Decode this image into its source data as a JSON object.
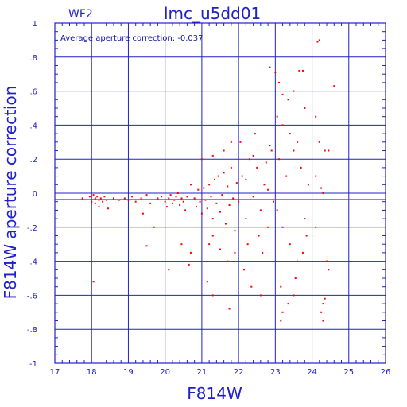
{
  "panel_label": "WF2",
  "title": "lmc_u5dd01",
  "annotation": "Average aperture correction: -0.037",
  "colors": {
    "axes": "#2020c8",
    "points": "#ff0000",
    "mean_line": "#ff0000"
  },
  "chart_data": {
    "type": "scatter",
    "title": "lmc_u5dd01",
    "subtitle": "WF2",
    "xlabel": "F814W",
    "ylabel": "F814W aperture correction",
    "xlim": [
      17,
      26
    ],
    "ylim": [
      -1,
      1
    ],
    "xticks": [
      17,
      18,
      19,
      20,
      21,
      22,
      23,
      24,
      25,
      26
    ],
    "yticks": [
      -1,
      -0.8,
      -0.6,
      -0.4,
      -0.2,
      0,
      0.2,
      0.4,
      0.6,
      0.8,
      1
    ],
    "grid": true,
    "horizontal_lines": [
      {
        "y": 0,
        "color": "#2020c8"
      },
      {
        "y": -0.037,
        "color": "#ff0000"
      }
    ],
    "series": [
      {
        "color": "#ff0000",
        "points": [
          [
            17.75,
            -0.03
          ],
          [
            17.95,
            -0.02
          ],
          [
            18.0,
            -0.05
          ],
          [
            18.05,
            -0.01
          ],
          [
            18.1,
            -0.03
          ],
          [
            18.1,
            -0.06
          ],
          [
            18.15,
            -0.02
          ],
          [
            18.2,
            -0.04
          ],
          [
            18.2,
            -0.08
          ],
          [
            18.25,
            -0.03
          ],
          [
            18.3,
            -0.05
          ],
          [
            18.35,
            -0.02
          ],
          [
            18.4,
            -0.04
          ],
          [
            18.45,
            -0.09
          ],
          [
            18.05,
            -0.52
          ],
          [
            18.6,
            -0.03
          ],
          [
            18.75,
            -0.04
          ],
          [
            18.9,
            -0.03
          ],
          [
            19.0,
            -0.04
          ],
          [
            19.1,
            -0.02
          ],
          [
            19.2,
            -0.05
          ],
          [
            19.35,
            -0.03
          ],
          [
            19.5,
            -0.01
          ],
          [
            19.6,
            -0.06
          ],
          [
            19.4,
            -0.12
          ],
          [
            19.5,
            -0.31
          ],
          [
            19.7,
            -0.2
          ],
          [
            19.8,
            -0.03
          ],
          [
            19.9,
            -0.02
          ],
          [
            20.0,
            -0.05
          ],
          [
            20.05,
            -0.08
          ],
          [
            20.1,
            -0.03
          ],
          [
            20.15,
            -0.01
          ],
          [
            20.2,
            -0.06
          ],
          [
            20.25,
            -0.04
          ],
          [
            20.3,
            -0.02
          ],
          [
            20.35,
            0.0
          ],
          [
            20.4,
            -0.07
          ],
          [
            20.45,
            -0.03
          ],
          [
            20.5,
            -0.05
          ],
          [
            20.55,
            -0.1
          ],
          [
            20.6,
            -0.02
          ],
          [
            20.1,
            -0.45
          ],
          [
            20.45,
            -0.3
          ],
          [
            20.7,
            -0.35
          ],
          [
            20.65,
            -0.42
          ],
          [
            20.7,
            0.05
          ],
          [
            20.8,
            -0.03
          ],
          [
            20.85,
            -0.08
          ],
          [
            20.9,
            0.02
          ],
          [
            20.95,
            -0.05
          ],
          [
            21.0,
            -0.12
          ],
          [
            21.05,
            0.03
          ],
          [
            21.1,
            -0.04
          ],
          [
            21.15,
            -0.09
          ],
          [
            21.2,
            0.05
          ],
          [
            21.25,
            -0.02
          ],
          [
            21.3,
            -0.15
          ],
          [
            21.35,
            0.08
          ],
          [
            21.4,
            -0.06
          ],
          [
            21.45,
            0.1
          ],
          [
            21.5,
            -0.11
          ],
          [
            21.55,
            -0.01
          ],
          [
            21.6,
            0.12
          ],
          [
            21.65,
            -0.18
          ],
          [
            21.7,
            0.04
          ],
          [
            21.75,
            -0.07
          ],
          [
            21.8,
            0.15
          ],
          [
            21.85,
            -0.03
          ],
          [
            21.9,
            -0.22
          ],
          [
            21.95,
            0.06
          ],
          [
            21.2,
            -0.3
          ],
          [
            21.3,
            -0.25
          ],
          [
            21.15,
            -0.52
          ],
          [
            21.3,
            -0.6
          ],
          [
            21.5,
            -0.33
          ],
          [
            21.7,
            -0.4
          ],
          [
            21.75,
            -0.68
          ],
          [
            21.9,
            -0.35
          ],
          [
            21.6,
            0.25
          ],
          [
            21.8,
            0.3
          ],
          [
            21.0,
            0.2
          ],
          [
            21.3,
            0.22
          ],
          [
            22.0,
            -0.05
          ],
          [
            22.1,
            0.1
          ],
          [
            22.2,
            -0.15
          ],
          [
            22.3,
            0.2
          ],
          [
            22.4,
            -0.02
          ],
          [
            22.5,
            0.15
          ],
          [
            22.6,
            -0.1
          ],
          [
            22.7,
            0.05
          ],
          [
            22.8,
            -0.2
          ],
          [
            22.9,
            0.25
          ],
          [
            22.05,
            0.3
          ],
          [
            22.25,
            -0.3
          ],
          [
            22.45,
            0.35
          ],
          [
            22.65,
            -0.35
          ],
          [
            22.85,
            0.28
          ],
          [
            22.15,
            -0.45
          ],
          [
            22.35,
            -0.55
          ],
          [
            22.55,
            -0.25
          ],
          [
            22.75,
            0.18
          ],
          [
            22.95,
            -0.05
          ],
          [
            22.6,
            -0.6
          ],
          [
            22.8,
            0.02
          ],
          [
            22.2,
            0.08
          ],
          [
            22.4,
            0.22
          ],
          [
            22.85,
            0.74
          ],
          [
            23.0,
            0.71
          ],
          [
            23.1,
            0.65
          ],
          [
            23.2,
            0.58
          ],
          [
            23.35,
            0.55
          ],
          [
            23.5,
            0.6
          ],
          [
            23.75,
            0.72
          ],
          [
            23.65,
            0.72
          ],
          [
            23.05,
            0.45
          ],
          [
            23.2,
            0.4
          ],
          [
            23.4,
            0.35
          ],
          [
            23.6,
            0.3
          ],
          [
            23.8,
            0.5
          ],
          [
            23.1,
            0.2
          ],
          [
            23.3,
            0.1
          ],
          [
            23.5,
            0.25
          ],
          [
            23.7,
            0.15
          ],
          [
            23.9,
            0.05
          ],
          [
            23.05,
            -0.1
          ],
          [
            23.2,
            -0.2
          ],
          [
            23.4,
            -0.3
          ],
          [
            23.6,
            -0.4
          ],
          [
            23.8,
            -0.15
          ],
          [
            23.15,
            -0.55
          ],
          [
            23.35,
            -0.65
          ],
          [
            23.55,
            -0.5
          ],
          [
            23.75,
            -0.35
          ],
          [
            23.2,
            -0.7
          ],
          [
            23.15,
            -0.75
          ],
          [
            23.5,
            -0.6
          ],
          [
            23.85,
            -0.25
          ],
          [
            24.1,
            0.45
          ],
          [
            24.2,
            0.3
          ],
          [
            24.35,
            0.25
          ],
          [
            24.45,
            0.25
          ],
          [
            24.1,
            0.1
          ],
          [
            24.25,
            0.03
          ],
          [
            24.3,
            0.0
          ],
          [
            24.1,
            -0.2
          ],
          [
            24.4,
            -0.4
          ],
          [
            24.45,
            -0.45
          ],
          [
            24.3,
            -0.65
          ],
          [
            24.35,
            -0.62
          ],
          [
            24.25,
            -0.7
          ],
          [
            24.3,
            -0.75
          ],
          [
            24.15,
            0.89
          ],
          [
            24.2,
            0.9
          ],
          [
            24.6,
            0.63
          ]
        ]
      }
    ]
  }
}
